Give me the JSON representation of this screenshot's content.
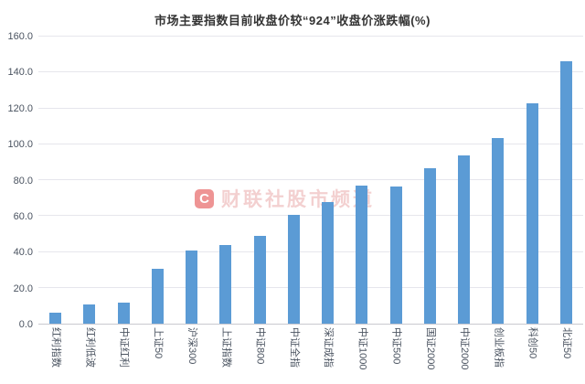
{
  "chart_data": {
    "type": "bar",
    "title": "市场主要指数目前收盘价较“924”收盘价涨跌幅(%)",
    "xlabel": "",
    "ylabel": "",
    "categories": [
      "红利指数",
      "红利低波",
      "中证红利",
      "上证50",
      "沪深300",
      "上证指数",
      "中证800",
      "中证全指",
      "深证成指",
      "中证1000",
      "中证500",
      "国证2000",
      "中证2000",
      "创业板指",
      "科创50",
      "北证50"
    ],
    "values": [
      5.9,
      10.8,
      11.6,
      30.8,
      41.0,
      43.6,
      48.9,
      60.5,
      68.0,
      76.8,
      76.2,
      86.5,
      94.0,
      103.4,
      122.8,
      146.0
    ],
    "ylim": [
      0,
      160
    ],
    "y_ticks": [
      0,
      20,
      40,
      60,
      80,
      100,
      120,
      140,
      160
    ],
    "y_tick_labels": [
      "0.0",
      "20.0",
      "40.0",
      "60.0",
      "80.0",
      "100.0",
      "120.0",
      "140.0",
      "160.0"
    ],
    "grid": true,
    "legend_position": "none",
    "bar_color": "#5B9BD5",
    "colors": {
      "gridline": "#E6E6EC",
      "axis_line": "#C9C9CF",
      "tick_label": "#4A5360",
      "title": "#333333"
    }
  },
  "watermark": {
    "logo_letter": "C",
    "text": "财联社股市频道",
    "brand_color": "#E03C3C"
  }
}
